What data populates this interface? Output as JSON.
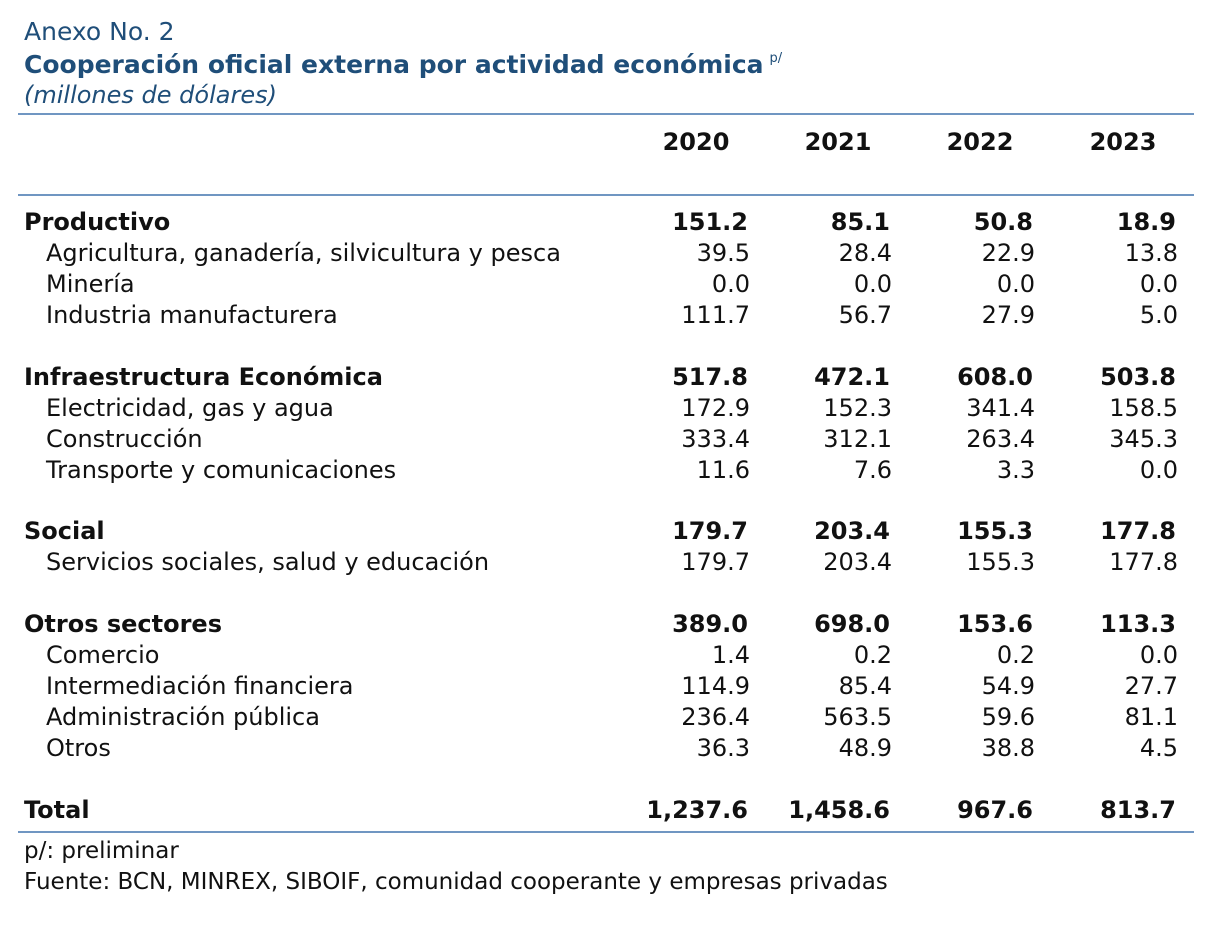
{
  "header": {
    "annex": "Anexo No. 2",
    "title": "Cooperación oficial externa por actividad económica",
    "title_mark": "p/",
    "units": "(millones de dólares)"
  },
  "columns": [
    "2020",
    "2021",
    "2022",
    "2023"
  ],
  "sections": [
    {
      "name": "Productivo",
      "values": [
        "151.2",
        "85.1",
        "50.8",
        "18.9"
      ],
      "rows": [
        {
          "label": "Agricultura, ganadería, silvicultura y pesca",
          "values": [
            "39.5",
            "28.4",
            "22.9",
            "13.8"
          ]
        },
        {
          "label": "Minería",
          "values": [
            "0.0",
            "0.0",
            "0.0",
            "0.0"
          ]
        },
        {
          "label": "Industria manufacturera",
          "values": [
            "111.7",
            "56.7",
            "27.9",
            "5.0"
          ]
        }
      ]
    },
    {
      "name": "Infraestructura Económica",
      "values": [
        "517.8",
        "472.1",
        "608.0",
        "503.8"
      ],
      "rows": [
        {
          "label": "Electricidad, gas y agua",
          "values": [
            "172.9",
            "152.3",
            "341.4",
            "158.5"
          ]
        },
        {
          "label": "Construcción",
          "values": [
            "333.4",
            "312.1",
            "263.4",
            "345.3"
          ]
        },
        {
          "label": "Transporte y comunicaciones",
          "values": [
            "11.6",
            "7.6",
            "3.3",
            "0.0"
          ]
        }
      ]
    },
    {
      "name": "Social",
      "values": [
        "179.7",
        "203.4",
        "155.3",
        "177.8"
      ],
      "rows": [
        {
          "label": "Servicios sociales, salud y educación",
          "values": [
            "179.7",
            "203.4",
            "155.3",
            "177.8"
          ]
        }
      ]
    },
    {
      "name": "Otros sectores",
      "values": [
        "389.0",
        "698.0",
        "153.6",
        "113.3"
      ],
      "rows": [
        {
          "label": "Comercio",
          "values": [
            "1.4",
            "0.2",
            "0.2",
            "0.0"
          ]
        },
        {
          "label": "Intermediación financiera",
          "values": [
            "114.9",
            "85.4",
            "54.9",
            "27.7"
          ]
        },
        {
          "label": "Administración pública",
          "values": [
            "236.4",
            "563.5",
            "59.6",
            "81.1"
          ]
        },
        {
          "label": "Otros",
          "values": [
            "36.3",
            "48.9",
            "38.8",
            "4.5"
          ]
        }
      ]
    }
  ],
  "total": {
    "label": "Total",
    "values": [
      "1,237.6",
      "1,458.6",
      "967.6",
      "813.7"
    ]
  },
  "footnotes": {
    "preliminary": "p/: preliminar",
    "source": "Fuente: BCN, MINREX, SIBOIF, comunidad cooperante y empresas privadas"
  },
  "colors": {
    "accent": "#1f4e79",
    "rule": "#7096c2"
  }
}
